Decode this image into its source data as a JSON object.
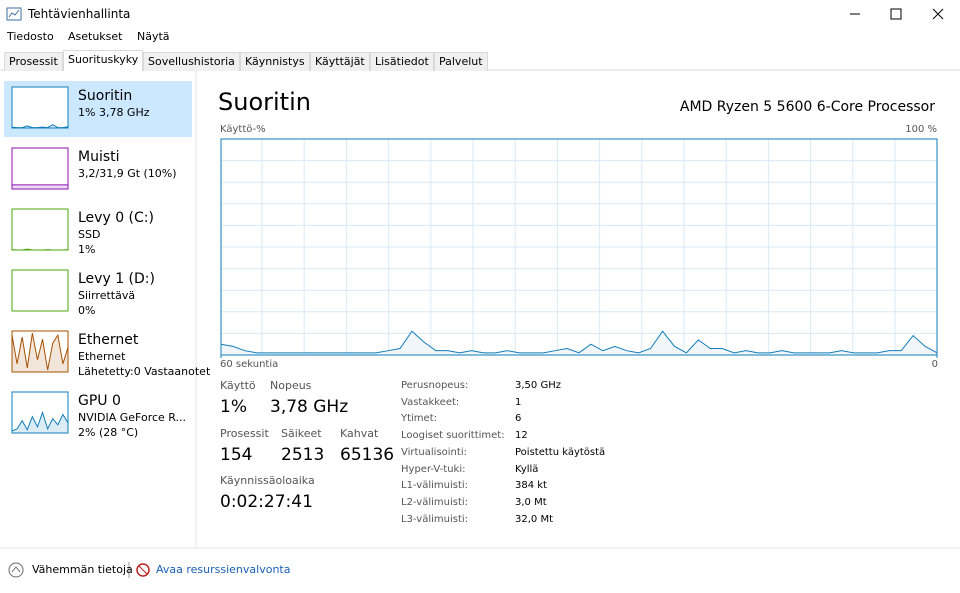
{
  "window": {
    "title": "Tehtävienhallinta"
  },
  "menu": [
    "Tiedosto",
    "Asetukset",
    "Näytä"
  ],
  "tabs": [
    "Prosessit",
    "Suorituskyky",
    "Sovellushistoria",
    "Käynnistys",
    "Käyttäjät",
    "Lisätiedot",
    "Palvelut"
  ],
  "sidebar": {
    "ylim": [
      0,
      100
    ],
    "items": [
      {
        "name": "Suoritin",
        "lines": [
          "1% 3,78 GHz"
        ],
        "color": "#117dbb",
        "history": [
          2,
          1,
          1,
          5,
          1,
          1,
          2,
          1,
          8,
          1,
          1,
          3
        ]
      },
      {
        "name": "Muisti",
        "lines": [
          "3,2/31,9 Gt (10%)"
        ],
        "color": "#8b12ae",
        "history": [
          10,
          10,
          10,
          10,
          10,
          10,
          10,
          10,
          10,
          10,
          10,
          10
        ]
      },
      {
        "name": "Levy 0 (C:)",
        "lines": [
          "SSD",
          "1%"
        ],
        "color": "#4da60c",
        "history": [
          1,
          0,
          0,
          2,
          0,
          0,
          0,
          1,
          0,
          0,
          0,
          1
        ]
      },
      {
        "name": "Levy 1 (D:)",
        "lines": [
          "Siirrettävä",
          "0%"
        ],
        "color": "#4da60c",
        "history": [
          0,
          0,
          0,
          0,
          0,
          0,
          0,
          0,
          0,
          0,
          0,
          0
        ]
      },
      {
        "name": "Ethernet",
        "lines": [
          "Ethernet",
          "Lähetetty:0 Vastaanotet"
        ],
        "color": "#a74f01",
        "history": [
          90,
          20,
          85,
          10,
          95,
          30,
          80,
          5,
          70,
          90,
          20,
          60
        ]
      },
      {
        "name": "GPU 0",
        "lines": [
          "NVIDIA GeForce R...",
          "2% (28 °C)"
        ],
        "color": "#117dbb",
        "history": [
          5,
          10,
          30,
          8,
          40,
          15,
          50,
          10,
          35,
          20,
          45,
          25
        ]
      }
    ]
  },
  "main": {
    "title": "Suoritin",
    "device": "AMD Ryzen 5 5600 6-Core Processor",
    "chart_data": {
      "type": "line",
      "ylabel": "Käyttö-%",
      "ylim": [
        0,
        100
      ],
      "yticks": [
        {
          "value": 100,
          "label": "100 %"
        }
      ],
      "xlim": [
        60,
        0
      ],
      "xticks": [
        {
          "value": 60,
          "label": "60 sekuntia"
        },
        0
      ],
      "color": "#117dbb",
      "fill": "#f1f6fa",
      "grid": true,
      "values": [
        5,
        4,
        2,
        1,
        1,
        1,
        1,
        1,
        1,
        1,
        1,
        1,
        1,
        1,
        2,
        3,
        11,
        6,
        2,
        2,
        1,
        2,
        1,
        1,
        2,
        1,
        1,
        1,
        2,
        3,
        1,
        5,
        2,
        4,
        2,
        1,
        3,
        11,
        4,
        1,
        7,
        3,
        3,
        1,
        2,
        1,
        1,
        2,
        1,
        1,
        1,
        1,
        2,
        1,
        1,
        1,
        2,
        2,
        9,
        4,
        1
      ]
    },
    "stats": [
      [
        {
          "label": "Käyttö",
          "value": "1%"
        },
        {
          "label": "Nopeus",
          "value": "3,78 GHz"
        }
      ],
      [
        {
          "label": "Prosessit",
          "value": "154"
        },
        {
          "label": "Säikeet",
          "value": "2513"
        },
        {
          "label": "Kahvat",
          "value": "65136"
        }
      ],
      [
        {
          "label": "Käynnissäoloaika",
          "value": "0:02:27:41"
        }
      ]
    ],
    "details": [
      [
        "Perusnopeus:",
        "3,50 GHz"
      ],
      [
        "Vastakkeet:",
        "1"
      ],
      [
        "Ytimet:",
        "6"
      ],
      [
        "Loogiset suorittimet:",
        "12"
      ],
      [
        "Virtualisointi:",
        "Poistettu käytöstä"
      ],
      [
        "Hyper-V-tuki:",
        "Kyllä"
      ],
      [
        "L1-välimuisti:",
        "384 kt"
      ],
      [
        "L2-välimuisti:",
        "3,0 Mt"
      ],
      [
        "L3-välimuisti:",
        "32,0 Mt"
      ]
    ]
  },
  "footer": {
    "less": "Vähemmän tietoja",
    "monitor": "Avaa resurssienvalvonta"
  }
}
